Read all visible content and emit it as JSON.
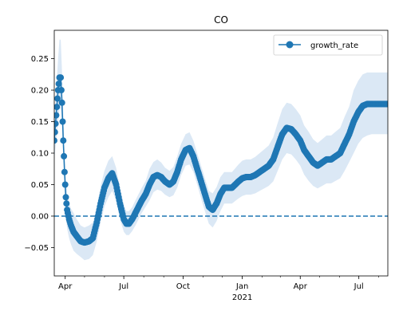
{
  "chart_data": {
    "type": "line",
    "title": "CO",
    "xlabel": "",
    "ylabel": "",
    "legend": {
      "placement": "top-right",
      "entries": [
        "growth_rate"
      ]
    },
    "grid": false,
    "xlim": [
      "2020-03-15",
      "2021-08-15"
    ],
    "ylim": [
      -0.095,
      0.295
    ],
    "y_ticks": [
      -0.05,
      0.0,
      0.05,
      0.1,
      0.15,
      0.2,
      0.25
    ],
    "y_tick_labels": [
      "−0.05",
      "0.00",
      "0.05",
      "0.10",
      "0.15",
      "0.20",
      "0.25"
    ],
    "x_ticks": [
      {
        "date": "2020-04-01",
        "label": "Apr",
        "sublabel": ""
      },
      {
        "date": "2020-07-01",
        "label": "Jul",
        "sublabel": ""
      },
      {
        "date": "2020-10-01",
        "label": "Oct",
        "sublabel": ""
      },
      {
        "date": "2021-01-01",
        "label": "Jan",
        "sublabel": "2021"
      },
      {
        "date": "2021-04-01",
        "label": "Apr",
        "sublabel": ""
      },
      {
        "date": "2021-07-01",
        "label": "Jul",
        "sublabel": ""
      }
    ],
    "reference_line": {
      "y": 0.0,
      "style": "dashed"
    },
    "colors": {
      "series": "#1f77b4",
      "band": "#dbe8f5"
    },
    "series": [
      {
        "name": "growth_rate",
        "x": [
          "2020-03-15",
          "2020-03-18",
          "2020-03-21",
          "2020-03-23",
          "2020-03-25",
          "2020-03-27",
          "2020-03-29",
          "2020-03-31",
          "2020-04-02",
          "2020-04-04",
          "2020-04-07",
          "2020-04-10",
          "2020-04-14",
          "2020-04-19",
          "2020-04-25",
          "2020-05-01",
          "2020-05-08",
          "2020-05-14",
          "2020-05-20",
          "2020-05-26",
          "2020-06-01",
          "2020-06-07",
          "2020-06-13",
          "2020-06-19",
          "2020-06-25",
          "2020-07-01",
          "2020-07-05",
          "2020-07-09",
          "2020-07-14",
          "2020-07-19",
          "2020-07-24",
          "2020-07-29",
          "2020-08-04",
          "2020-08-10",
          "2020-08-16",
          "2020-08-22",
          "2020-08-28",
          "2020-09-03",
          "2020-09-10",
          "2020-09-16",
          "2020-09-22",
          "2020-09-28",
          "2020-10-05",
          "2020-10-11",
          "2020-10-17",
          "2020-10-23",
          "2020-10-29",
          "2020-11-04",
          "2020-11-10",
          "2020-11-16",
          "2020-11-22",
          "2020-11-28",
          "2020-12-04",
          "2020-12-10",
          "2020-12-16",
          "2020-12-21",
          "2020-12-26",
          "2021-01-01",
          "2021-01-07",
          "2021-01-14",
          "2021-01-21",
          "2021-01-28",
          "2021-02-04",
          "2021-02-11",
          "2021-02-18",
          "2021-02-25",
          "2021-03-04",
          "2021-03-11",
          "2021-03-18",
          "2021-03-25",
          "2021-04-01",
          "2021-04-07",
          "2021-04-14",
          "2021-04-21",
          "2021-04-28",
          "2021-05-05",
          "2021-05-12",
          "2021-05-19",
          "2021-05-26",
          "2021-06-02",
          "2021-06-09",
          "2021-06-16",
          "2021-06-23",
          "2021-06-30",
          "2021-07-07",
          "2021-07-14",
          "2021-07-21",
          "2021-07-28",
          "2021-08-04",
          "2021-08-11",
          "2021-08-15"
        ],
        "values": [
          0.12,
          0.16,
          0.2,
          0.22,
          0.22,
          0.18,
          0.12,
          0.07,
          0.03,
          0.01,
          -0.005,
          -0.015,
          -0.025,
          -0.032,
          -0.04,
          -0.042,
          -0.04,
          -0.035,
          -0.01,
          0.02,
          0.045,
          0.06,
          0.068,
          0.05,
          0.02,
          -0.005,
          -0.012,
          -0.012,
          -0.005,
          0.005,
          0.015,
          0.025,
          0.035,
          0.05,
          0.062,
          0.065,
          0.062,
          0.055,
          0.05,
          0.055,
          0.07,
          0.09,
          0.105,
          0.108,
          0.095,
          0.075,
          0.055,
          0.035,
          0.015,
          0.01,
          0.02,
          0.035,
          0.045,
          0.045,
          0.045,
          0.05,
          0.055,
          0.06,
          0.062,
          0.062,
          0.065,
          0.07,
          0.075,
          0.08,
          0.09,
          0.11,
          0.13,
          0.14,
          0.138,
          0.13,
          0.12,
          0.105,
          0.095,
          0.085,
          0.08,
          0.085,
          0.09,
          0.09,
          0.095,
          0.1,
          0.115,
          0.13,
          0.15,
          0.165,
          0.175,
          0.178,
          0.178,
          0.178,
          0.178,
          0.178,
          0.178
        ],
        "lower": [
          0.09,
          0.12,
          0.15,
          0.17,
          0.17,
          0.14,
          0.09,
          0.04,
          0.0,
          -0.02,
          -0.035,
          -0.045,
          -0.055,
          -0.06,
          -0.065,
          -0.07,
          -0.068,
          -0.062,
          -0.04,
          -0.01,
          0.015,
          0.03,
          0.04,
          0.025,
          -0.005,
          -0.025,
          -0.03,
          -0.03,
          -0.024,
          -0.015,
          -0.005,
          0.005,
          0.015,
          0.025,
          0.038,
          0.042,
          0.04,
          0.034,
          0.03,
          0.033,
          0.045,
          0.065,
          0.08,
          0.082,
          0.07,
          0.05,
          0.028,
          0.008,
          -0.012,
          -0.018,
          -0.008,
          0.008,
          0.02,
          0.02,
          0.02,
          0.024,
          0.028,
          0.032,
          0.034,
          0.034,
          0.036,
          0.04,
          0.044,
          0.048,
          0.055,
          0.072,
          0.09,
          0.1,
          0.098,
          0.09,
          0.08,
          0.066,
          0.056,
          0.048,
          0.044,
          0.048,
          0.052,
          0.052,
          0.056,
          0.06,
          0.072,
          0.086,
          0.1,
          0.115,
          0.124,
          0.128,
          0.13,
          0.13,
          0.13,
          0.13,
          0.13
        ],
        "upper": [
          0.15,
          0.2,
          0.25,
          0.28,
          0.28,
          0.23,
          0.16,
          0.1,
          0.06,
          0.035,
          0.02,
          0.012,
          0.005,
          -0.005,
          -0.015,
          -0.018,
          -0.015,
          -0.01,
          0.015,
          0.048,
          0.072,
          0.088,
          0.095,
          0.077,
          0.045,
          0.018,
          0.008,
          0.008,
          0.014,
          0.025,
          0.035,
          0.045,
          0.056,
          0.075,
          0.086,
          0.09,
          0.085,
          0.077,
          0.072,
          0.078,
          0.095,
          0.115,
          0.13,
          0.133,
          0.12,
          0.1,
          0.08,
          0.06,
          0.04,
          0.036,
          0.046,
          0.062,
          0.07,
          0.07,
          0.07,
          0.076,
          0.082,
          0.088,
          0.09,
          0.09,
          0.094,
          0.1,
          0.106,
          0.112,
          0.125,
          0.148,
          0.17,
          0.18,
          0.178,
          0.17,
          0.16,
          0.144,
          0.134,
          0.122,
          0.116,
          0.122,
          0.128,
          0.128,
          0.134,
          0.14,
          0.158,
          0.174,
          0.2,
          0.215,
          0.225,
          0.228,
          0.228,
          0.228,
          0.228,
          0.228,
          0.228
        ]
      }
    ]
  }
}
